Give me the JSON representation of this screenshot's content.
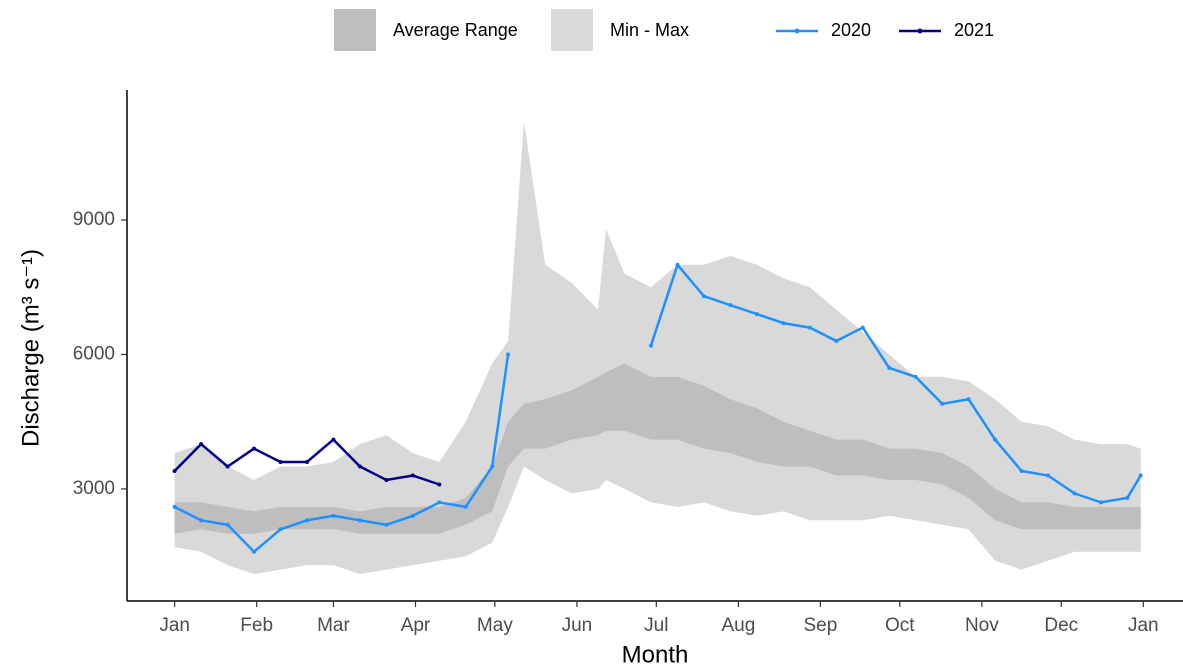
{
  "chart_data": {
    "type": "line",
    "x_label": "Month",
    "y_label": "Discharge (m³ s⁻¹)",
    "x": [
      0,
      10,
      20,
      30,
      40,
      50,
      60,
      70,
      80,
      90,
      100,
      110,
      120,
      126,
      132,
      140,
      150,
      160,
      163,
      170,
      180,
      190,
      200,
      210,
      220,
      230,
      240,
      250,
      260,
      270,
      280,
      290,
      300,
      310,
      320,
      330,
      340,
      350,
      360,
      365
    ],
    "xlim": [
      -18,
      381
    ],
    "xticks": [
      {
        "value": 0,
        "label": "Jan"
      },
      {
        "value": 31,
        "label": "Feb"
      },
      {
        "value": 60,
        "label": "Mar"
      },
      {
        "value": 91,
        "label": "Apr"
      },
      {
        "value": 121,
        "label": "May"
      },
      {
        "value": 152,
        "label": "Jun"
      },
      {
        "value": 182,
        "label": "Jul"
      },
      {
        "value": 213,
        "label": "Aug"
      },
      {
        "value": 244,
        "label": "Sep"
      },
      {
        "value": 274,
        "label": "Oct"
      },
      {
        "value": 305,
        "label": "Nov"
      },
      {
        "value": 335,
        "label": "Dec"
      },
      {
        "value": 366,
        "label": "Jan"
      }
    ],
    "ylim": [
      500,
      11900
    ],
    "yticks": [
      3000,
      6000,
      9000
    ],
    "bands": [
      {
        "name": "Min - Max",
        "color": "#d9d9d9",
        "lower": [
          1700,
          1600,
          1300,
          1100,
          1200,
          1300,
          1300,
          1100,
          1200,
          1300,
          1400,
          1500,
          1800,
          2600,
          3500,
          3200,
          2900,
          3000,
          3200,
          3000,
          2700,
          2600,
          2700,
          2500,
          2400,
          2500,
          2300,
          2300,
          2300,
          2400,
          2300,
          2200,
          2100,
          1400,
          1200,
          1400,
          1600,
          1600,
          1600,
          1600
        ],
        "upper": [
          3800,
          4000,
          3500,
          3200,
          3500,
          3500,
          3600,
          4000,
          4200,
          3800,
          3600,
          4500,
          5800,
          6300,
          11200,
          8000,
          7600,
          7000,
          8800,
          7800,
          7500,
          8000,
          8000,
          8200,
          8000,
          7700,
          7500,
          7000,
          6500,
          6000,
          5500,
          5500,
          5400,
          5000,
          4500,
          4400,
          4100,
          4000,
          4000,
          3900
        ]
      },
      {
        "name": "Average Range",
        "color": "#bebebe",
        "lower": [
          2000,
          2100,
          2000,
          2000,
          2100,
          2100,
          2100,
          2000,
          2000,
          2000,
          2000,
          2200,
          2500,
          3500,
          3900,
          3900,
          4100,
          4200,
          4300,
          4300,
          4100,
          4100,
          3900,
          3800,
          3600,
          3500,
          3500,
          3300,
          3300,
          3200,
          3200,
          3100,
          2800,
          2300,
          2100,
          2100,
          2100,
          2100,
          2100,
          2100
        ],
        "upper": [
          2700,
          2700,
          2600,
          2500,
          2600,
          2600,
          2600,
          2500,
          2600,
          2600,
          2600,
          2800,
          3500,
          4500,
          4900,
          5000,
          5200,
          5500,
          5600,
          5800,
          5500,
          5500,
          5300,
          5000,
          4800,
          4500,
          4300,
          4100,
          4100,
          3900,
          3900,
          3800,
          3500,
          3000,
          2700,
          2700,
          2600,
          2600,
          2600,
          2600
        ]
      }
    ],
    "series": [
      {
        "name": "2020",
        "color": "#1e90ff",
        "values": [
          2600,
          2300,
          2200,
          1600,
          2100,
          2300,
          2400,
          2300,
          2200,
          2400,
          2700,
          2600,
          3500,
          6000,
          null,
          null,
          null,
          null,
          null,
          null,
          6200,
          8000,
          7300,
          7100,
          6900,
          6700,
          6600,
          6300,
          6600,
          5700,
          5500,
          4900,
          5000,
          4100,
          3400,
          3300,
          2900,
          2700,
          2800,
          3300
        ]
      },
      {
        "name": "2021",
        "color": "#00008b",
        "values": [
          3400,
          4000,
          3500,
          3900,
          3600,
          3600,
          4100,
          3500,
          3200,
          3300,
          3100,
          null,
          null,
          null,
          null,
          null,
          null,
          null,
          null,
          null,
          null,
          null,
          null,
          null,
          null,
          null,
          null,
          null,
          null,
          null,
          null,
          null,
          null,
          null,
          null,
          null,
          null,
          null,
          null,
          null
        ]
      }
    ]
  }
}
